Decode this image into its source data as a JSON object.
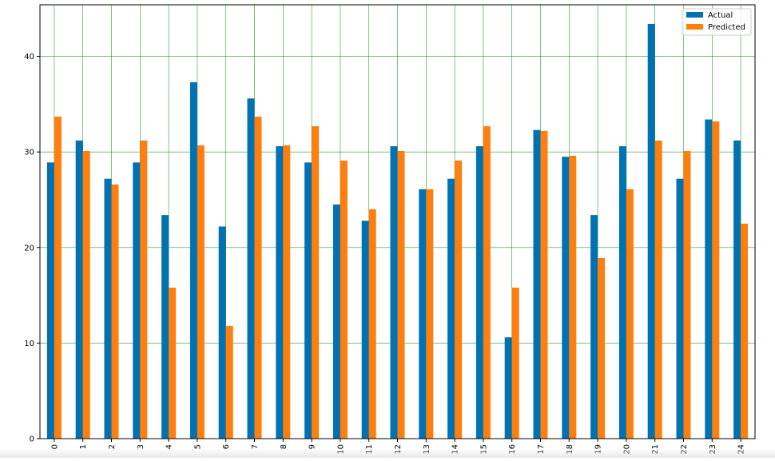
{
  "chart_data": {
    "type": "bar",
    "title": "",
    "xlabel": "",
    "ylabel": "",
    "categories": [
      "0",
      "1",
      "2",
      "3",
      "4",
      "5",
      "6",
      "7",
      "8",
      "9",
      "10",
      "11",
      "12",
      "13",
      "14",
      "15",
      "16",
      "17",
      "18",
      "19",
      "20",
      "21",
      "22",
      "23",
      "24"
    ],
    "series": [
      {
        "name": "Actual",
        "color": "#0072b2",
        "values": [
          28.9,
          31.2,
          27.2,
          28.9,
          23.4,
          37.3,
          22.2,
          35.6,
          30.6,
          28.9,
          24.5,
          22.8,
          30.6,
          26.1,
          27.2,
          30.6,
          10.6,
          32.3,
          29.5,
          23.4,
          30.6,
          43.4,
          27.2,
          33.4,
          31.2
        ]
      },
      {
        "name": "Predicted",
        "color": "#ff7f0e",
        "values": [
          33.7,
          30.1,
          26.6,
          31.2,
          15.8,
          30.7,
          11.8,
          33.7,
          30.7,
          32.7,
          29.1,
          24.0,
          30.1,
          26.1,
          29.1,
          32.7,
          15.8,
          32.2,
          29.6,
          18.9,
          26.1,
          31.2,
          30.1,
          33.2,
          22.5
        ]
      }
    ],
    "ylim": [
      0,
      45.4
    ],
    "yticks": [
      0,
      10,
      20,
      30,
      40
    ],
    "grid": true,
    "grid_color": "#008000",
    "legend_position": "top-right",
    "xtick_rotation": "vertical"
  }
}
